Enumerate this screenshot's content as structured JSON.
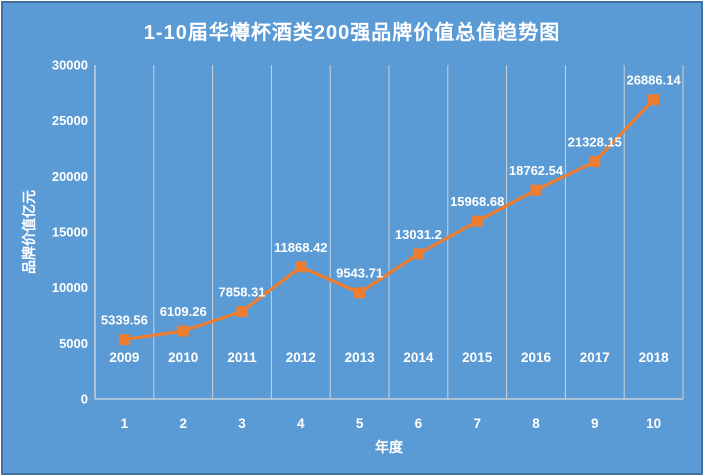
{
  "chart_data": {
    "type": "line",
    "title": "1-10届华樽杯酒类200强品牌价值总值趋势图",
    "xlabel": "年度",
    "ylabel": "品牌价值亿元",
    "categories": [
      "1",
      "2",
      "3",
      "4",
      "5",
      "6",
      "7",
      "8",
      "9",
      "10"
    ],
    "year_labels": [
      "2009",
      "2010",
      "2011",
      "2012",
      "2013",
      "2014",
      "2015",
      "2016",
      "2017",
      "2018"
    ],
    "values": [
      5339.56,
      6109.26,
      7858.31,
      11868.42,
      9543.71,
      13031.2,
      15968.68,
      18762.54,
      21328.15,
      26886.14
    ],
    "value_labels": [
      "5339.56",
      "6109.26",
      "7858.31",
      "11868.42",
      "9543.71",
      "13031.2",
      "15968.68",
      "18762.54",
      "21328.15",
      "26886.14"
    ],
    "ylim": [
      0,
      30000
    ],
    "yticks": [
      0,
      5000,
      10000,
      15000,
      20000,
      25000,
      30000
    ],
    "grid": "vertical-category-boundaries",
    "legend": "none",
    "marker": "square",
    "colors": {
      "background": "#5B9BD5",
      "border": "#41719C",
      "line": "#ED7D31",
      "marker": "#ED7D31",
      "text": "#FFFFFF",
      "gridline": "#D9D9D9"
    }
  }
}
